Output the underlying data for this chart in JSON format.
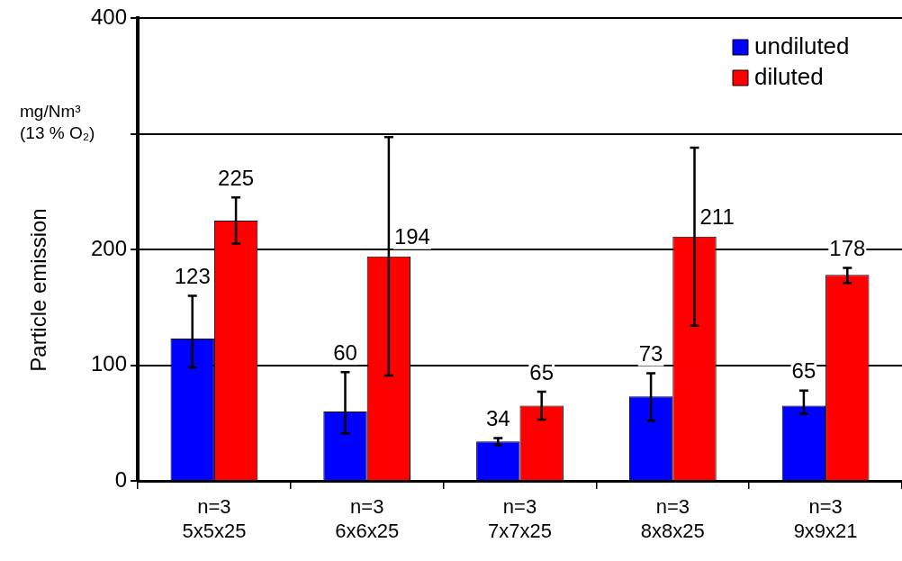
{
  "chart_data": {
    "type": "bar",
    "ylabel": "Particle emission",
    "annotations": [
      "mg/Nm³ (13 % O₂)"
    ],
    "categories": [
      "n=3\n5x5x25",
      "n=3\n6x6x25",
      "n=3\n7x7x25",
      "n=3\n8x8x25",
      "n=3\n9x9x21"
    ],
    "series": [
      {
        "name": "undiluted",
        "color": "#0000ff",
        "values": [
          123,
          60,
          34,
          73,
          65
        ],
        "errors": [
          [
            98,
            160
          ],
          [
            41,
            94
          ],
          [
            31,
            37
          ],
          [
            52,
            93
          ],
          [
            58,
            78
          ]
        ]
      },
      {
        "name": "diluted",
        "color": "#ff0000",
        "values": [
          225,
          194,
          65,
          211,
          178
        ],
        "errors": [
          [
            205,
            245
          ],
          [
            91,
            297
          ],
          [
            53,
            77
          ],
          [
            134,
            288
          ],
          [
            171,
            184
          ]
        ]
      }
    ],
    "ylim": [
      0,
      400
    ],
    "yticks": [
      0,
      100,
      200,
      {
        "value": 300,
        "label": null
      },
      400
    ],
    "grid": "y",
    "legend": "top right",
    "data_labels": true
  }
}
